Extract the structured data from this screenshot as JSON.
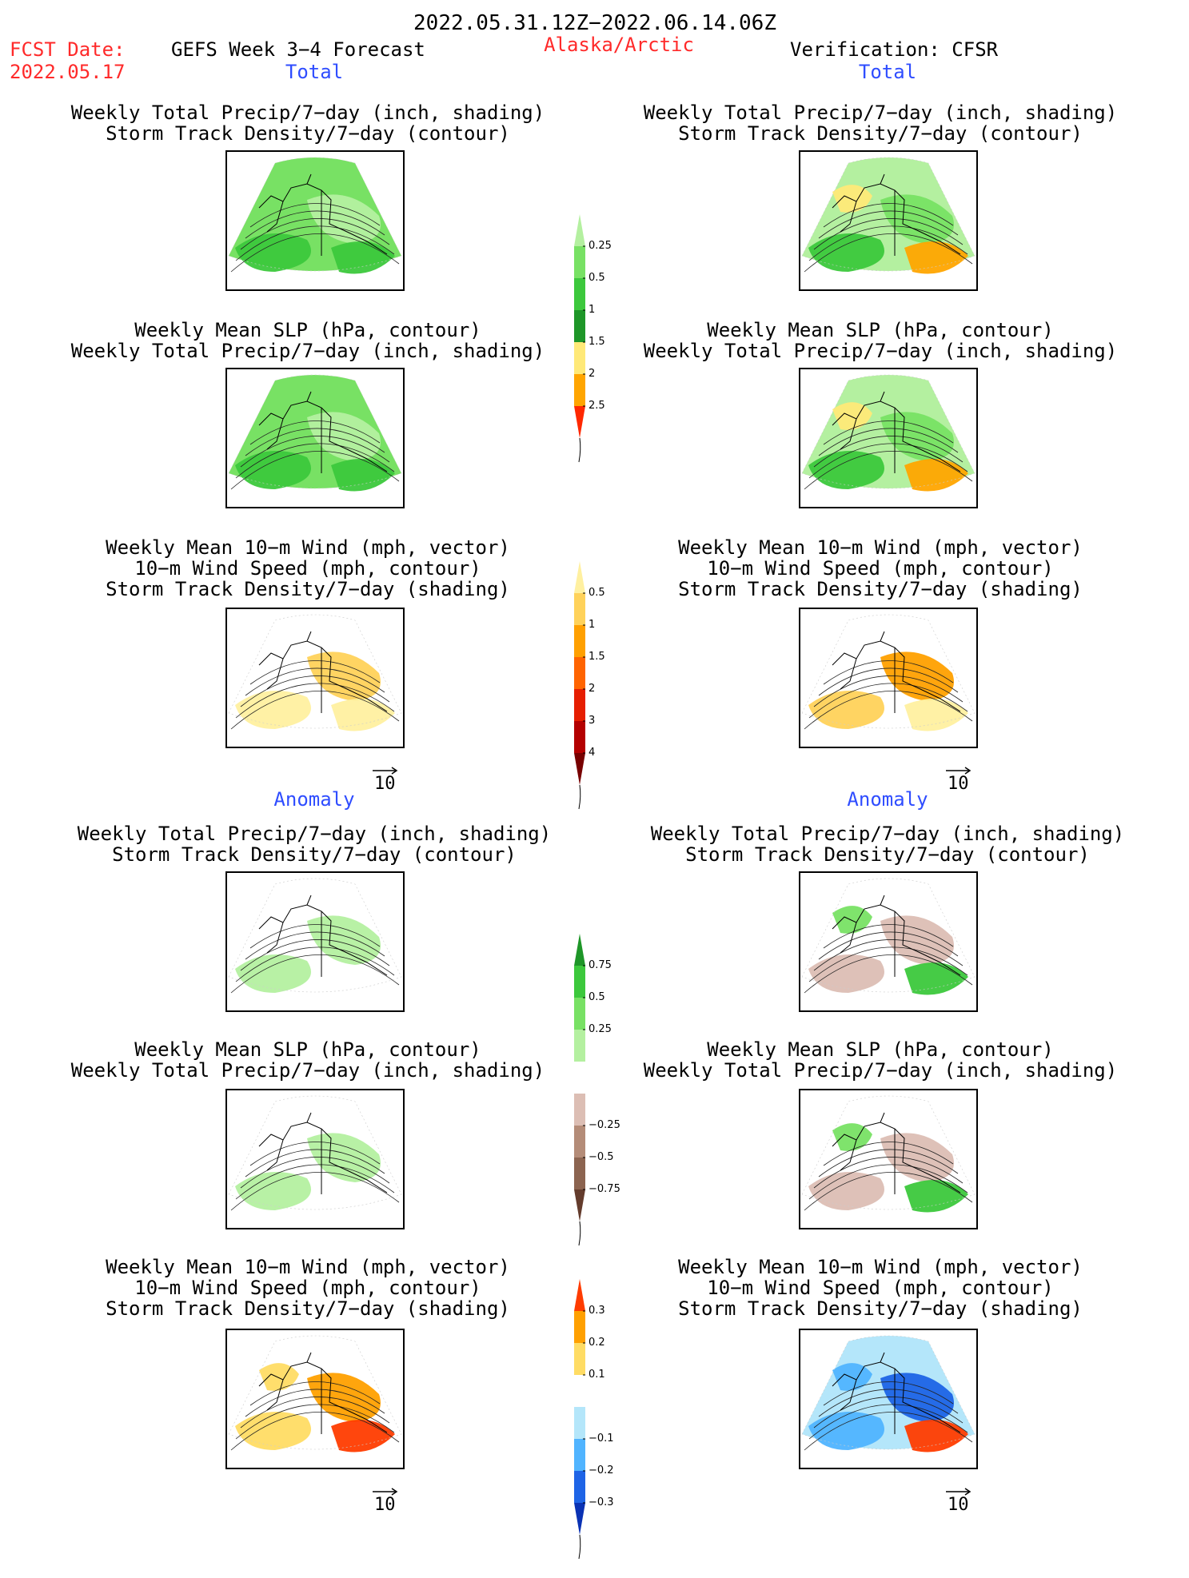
{
  "header": {
    "period": "2022.05.31.12Z−2022.06.14.06Z",
    "fcst_label": "FCST Date:",
    "fcst_date": "2022.05.17",
    "model_title": "GEFS Week 3−4 Forecast",
    "region": "Alaska/Arctic",
    "verification": "Verification: CFSR"
  },
  "sections": {
    "total": "Total",
    "anomaly": "Anomaly"
  },
  "titles": {
    "precip_storm": [
      "Weekly Total Precip/7−day (inch, shading)",
      "Storm Track Density/7−day (contour)"
    ],
    "slp_precip": [
      "Weekly Mean SLP (hPa, contour)",
      "Weekly Total Precip/7−day (inch, shading)"
    ],
    "wind_storm": [
      "Weekly Mean 10−m Wind (mph, vector)",
      "10−m Wind Speed (mph, contour)",
      "Storm Track Density/7−day (shading)"
    ]
  },
  "vector_ref": "10",
  "colorbars": {
    "precip_total": {
      "labels": [
        "0.25",
        "0.5",
        "1",
        "1.5",
        "2",
        "2.5"
      ],
      "colors": [
        "#b4f0a0",
        "#78e164",
        "#3cc83c",
        "#1e9628",
        "#ffe978",
        "#ffa500",
        "#ff2800"
      ]
    },
    "storm_total": {
      "labels": [
        "0.5",
        "1",
        "1.5",
        "2",
        "3",
        "4"
      ],
      "colors": [
        "#fff0a0",
        "#ffd25a",
        "#ffa000",
        "#ff6400",
        "#e61e00",
        "#b40000",
        "#780000"
      ]
    },
    "precip_anom": {
      "labels": [
        "0.75",
        "0.5",
        "0.25",
        "−0.25",
        "−0.5",
        "−0.75"
      ],
      "colors": [
        "#1e9628",
        "#3cc83c",
        "#78e164",
        "#b4f0a0",
        "#ffffff",
        "#dcbeb4",
        "#b48c78",
        "#8c6450",
        "#643c2d"
      ]
    },
    "storm_anom": {
      "labels": [
        "0.3",
        "0.2",
        "0.1",
        "−0.1",
        "−0.2",
        "−0.3"
      ],
      "colors": [
        "#ff3c00",
        "#ffa000",
        "#ffdc64",
        "#ffffff",
        "#b4e6fa",
        "#50b4ff",
        "#1e64e6",
        "#0a32b4"
      ]
    }
  }
}
